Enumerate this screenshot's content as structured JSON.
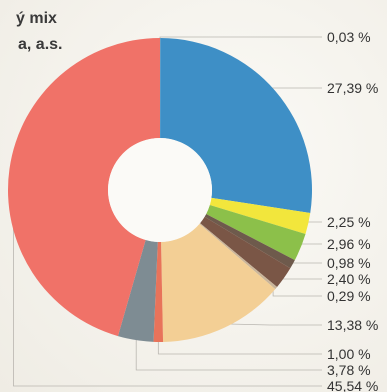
{
  "title_lines": [
    "ý mix",
    "a, a.s."
  ],
  "chart_data": {
    "type": "pie",
    "donut": true,
    "values": [
      0.03,
      27.39,
      2.25,
      2.96,
      0.98,
      2.4,
      0.29,
      13.38,
      1.0,
      3.78,
      45.54
    ],
    "labels": [
      "0,03 %",
      "27,39 %",
      "2,25 %",
      "2,96 %",
      "0,98 %",
      "2,40 %",
      "0,29 %",
      "13,38 %",
      "1,00 %",
      "3,78 %",
      "45,54 %"
    ],
    "colors": [
      "#8a9aa6",
      "#3e8fc6",
      "#f2e63c",
      "#8cc04a",
      "#6e5a4c",
      "#7a5646",
      "#c9b59a",
      "#f3cf95",
      "#e8735a",
      "#7e8c93",
      "#f07268"
    ]
  }
}
